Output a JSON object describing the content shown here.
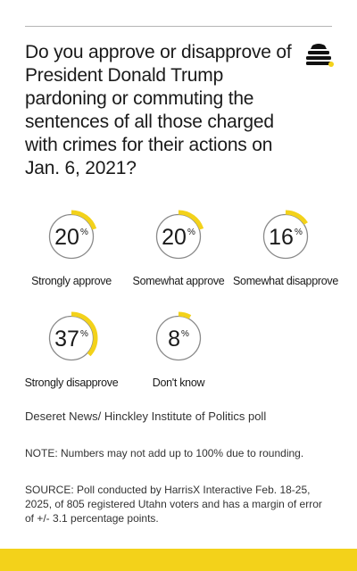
{
  "question": "Do you approve or disapprove of President Donald Trump pardoning or commuting the sentences of all those charged with crimes for their actions on Jan. 6, 2021?",
  "accent_color": "#f3d21a",
  "logo_icon": "deseret-news-beehive-icon",
  "chart_data": {
    "type": "pie",
    "categories": [
      "Strongly approve",
      "Somewhat approve",
      "Somewhat disapprove",
      "Strongly disapprove",
      "Don't know"
    ],
    "values": [
      20,
      20,
      16,
      37,
      8
    ],
    "unit": "%",
    "color": "#f3d21a",
    "title": "Do you approve or disapprove of President Donald Trump pardoning or commuting the sentences of all those charged with crimes for their actions on Jan. 6, 2021?"
  },
  "footer": {
    "source_line": "Deseret News/ Hinckley Institute of Politics poll",
    "note": "NOTE: Numbers may not add up to 100% due to rounding.",
    "source": "SOURCE: Poll conducted by HarrisX Interactive Feb. 18-25, 2025, of 805 registered Utahn voters and has a margin of error of +/- 3.1 percentage points."
  }
}
